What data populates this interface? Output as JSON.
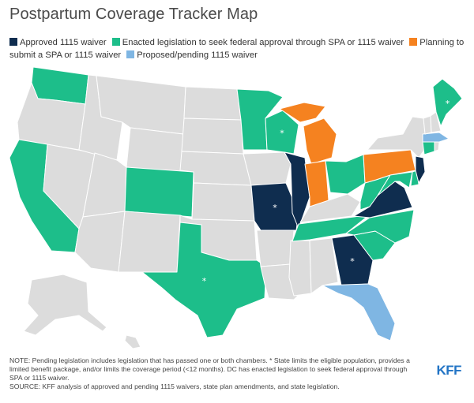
{
  "title": "Postpartum Coverage Tracker Map",
  "legend": [
    {
      "label": "Approved 1115 waiver",
      "color": "#0f2d4f"
    },
    {
      "label": "Enacted legislation to seek federal approval through SPA or 1115 waiver",
      "color": "#1dbe8a"
    },
    {
      "label": "Planning to submit a SPA or 1115 waiver",
      "color": "#f58220"
    },
    {
      "label": "Proposed/pending 1115 waiver",
      "color": "#7fb6e3"
    }
  ],
  "colors": {
    "approved": "#0f2d4f",
    "enacted": "#1dbe8a",
    "planning": "#f58220",
    "pending": "#7fb6e3",
    "none": "#dcdcdc",
    "border": "#ffffff",
    "brand": "#2274c5"
  },
  "state_status": {
    "Illinois": "approved",
    "Missouri": "approved",
    "Georgia": "approved",
    "Virginia": "approved",
    "New Jersey": "approved",
    "Washington": "enacted",
    "California": "enacted",
    "Colorado": "enacted",
    "Texas": "enacted",
    "Minnesota": "enacted",
    "Wisconsin": "enacted",
    "Ohio": "enacted",
    "West Virginia": "enacted",
    "Tennessee": "enacted",
    "North Carolina": "enacted",
    "South Carolina": "enacted",
    "Maine": "enacted",
    "Connecticut": "enacted",
    "Maryland": "enacted",
    "Delaware": "enacted",
    "Michigan": "planning",
    "Indiana": "planning",
    "Pennsylvania": "planning",
    "Florida": "pending",
    "Massachusetts": "pending"
  },
  "starred_states": [
    "Maine",
    "Wisconsin",
    "Missouri",
    "Georgia",
    "Texas"
  ],
  "star_symbol": "*",
  "note": "NOTE: Pending legislation includes legislation that has passed one or both chambers. * State limits the eligible population, provides a limited benefit package, and/or limits the coverage period (<12 months). DC has enacted legislation to seek federal approval through SPA or 1115 waiver.",
  "source": "SOURCE: KFF analysis of approved and pending 1115 waivers, state plan amendments, and state legislation.",
  "brand": "KFF"
}
